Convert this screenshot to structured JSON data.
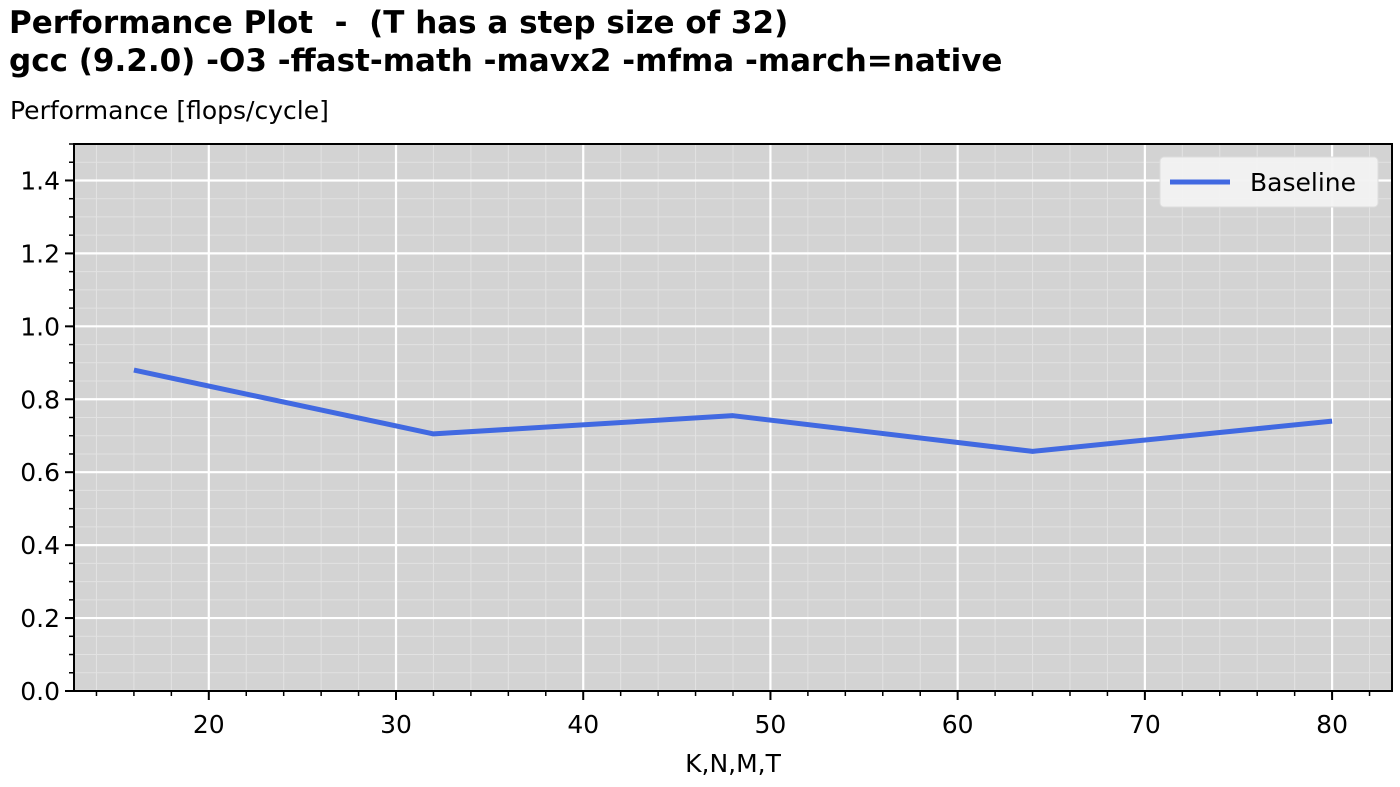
{
  "chart_data": {
    "type": "line",
    "title_line1": "Performance Plot  -  (T has a step size of 32)",
    "title_line2": "gcc (9.2.0) -O3 -ffast-math -mavx2 -mfma -march=native",
    "subtitle": "Performance [flops/cycle]",
    "xlabel": "K,N,M,T",
    "ylabel": "",
    "xlim": [
      12.8,
      83.2
    ],
    "ylim": [
      0,
      1.5
    ],
    "xticks": [
      20,
      30,
      40,
      50,
      60,
      70,
      80
    ],
    "yticks": [
      0.0,
      0.2,
      0.4,
      0.6,
      0.8,
      1.0,
      1.2,
      1.4
    ],
    "x_minor_step": 2,
    "y_minor_step": 0.05,
    "grid": true,
    "legend_position": "top-right",
    "colors": {
      "plot_bg": "#d3d3d3",
      "grid_major": "#ffffff",
      "grid_minor": "#e2e2e2"
    },
    "series": [
      {
        "name": "Baseline",
        "color": "#4169e1",
        "x": [
          16,
          32,
          48,
          64,
          80
        ],
        "y": [
          0.88,
          0.705,
          0.755,
          0.657,
          0.74
        ]
      }
    ]
  }
}
